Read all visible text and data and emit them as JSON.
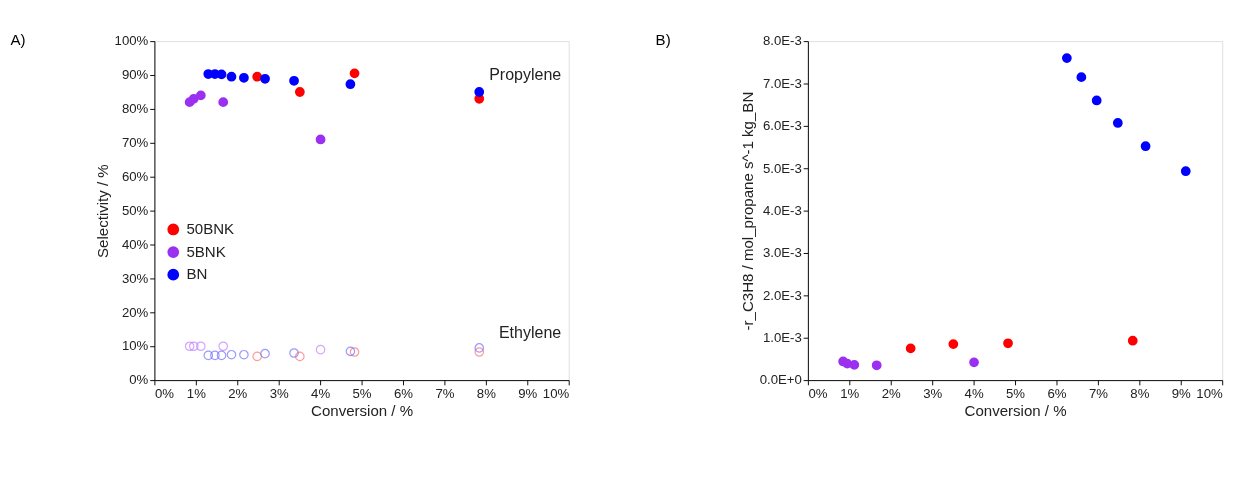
{
  "chart_data": [
    {
      "type": "scatter",
      "title": "A)",
      "xlabel": "Conversion / %",
      "ylabel": "Selectivity / %",
      "xlim": [
        0,
        10
      ],
      "xticks": [
        {
          "value": 0,
          "label": "0%"
        },
        {
          "value": 1,
          "label": "1%"
        },
        {
          "value": 2,
          "label": "2%"
        },
        {
          "value": 3,
          "label": "3%"
        },
        {
          "value": 4,
          "label": "4%"
        },
        {
          "value": 5,
          "label": "5%"
        },
        {
          "value": 6,
          "label": "6%"
        },
        {
          "value": 7,
          "label": "7%"
        },
        {
          "value": 8,
          "label": "8%"
        },
        {
          "value": 9,
          "label": "9%"
        },
        {
          "value": 10,
          "label": "10%"
        }
      ],
      "ylim": [
        0,
        100
      ],
      "yticks": [
        {
          "value": 0,
          "label": "0%"
        },
        {
          "value": 10,
          "label": "10%"
        },
        {
          "value": 20,
          "label": "20%"
        },
        {
          "value": 30,
          "label": "30%"
        },
        {
          "value": 40,
          "label": "40%"
        },
        {
          "value": 50,
          "label": "50%"
        },
        {
          "value": 60,
          "label": "60%"
        },
        {
          "value": 70,
          "label": "70%"
        },
        {
          "value": 80,
          "label": "80%"
        },
        {
          "value": 90,
          "label": "90%"
        },
        {
          "value": 100,
          "label": "100%"
        }
      ],
      "marker": "circle",
      "grid": false,
      "legend": "left",
      "annotations": [
        "Propylene",
        "Ethylene"
      ],
      "series": [
        {
          "name": "50BNK",
          "color": "#ff0000",
          "x": [
            2.48,
            3.51,
            4.83,
            7.84
          ],
          "values": [
            89.5,
            85.0,
            90.5,
            83.0
          ]
        },
        {
          "name": "5BNK",
          "color": "#9b30f0",
          "x": [
            0.85,
            0.95,
            1.12,
            1.66,
            4.01
          ],
          "values": [
            82,
            83,
            84,
            82,
            71
          ]
        },
        {
          "name": "BN",
          "color": "#0000ff",
          "x": [
            1.3,
            1.46,
            1.62,
            1.86,
            2.16,
            2.67,
            3.37,
            4.73,
            7.84
          ],
          "values": [
            90.3,
            90.3,
            90.2,
            89.5,
            89.2,
            88.9,
            88.3,
            87.3,
            85.0
          ]
        },
        {
          "color": "#ff7070",
          "x": [
            2.48,
            3.51,
            4.83,
            7.84
          ],
          "values": [
            7.0,
            7.0,
            8.3,
            8.3
          ]
        },
        {
          "color": "#c080ff",
          "x": [
            0.85,
            0.95,
            1.12,
            1.66,
            4.01
          ],
          "values": [
            10,
            10,
            10,
            10,
            9.0
          ]
        },
        {
          "color": "#7070ff",
          "x": [
            1.3,
            1.46,
            1.62,
            1.86,
            2.16,
            2.67,
            3.37,
            4.73,
            7.84
          ],
          "values": [
            7.3,
            7.3,
            7.3,
            7.5,
            7.5,
            7.8,
            8.0,
            8.5,
            9.5
          ]
        }
      ]
    },
    {
      "type": "scatter",
      "title": "B)",
      "xlabel": "Conversion / %",
      "ylabel": "-r_C3H8 / mol_propane s^-1 kg_BN",
      "xlim": [
        0,
        10
      ],
      "xticks": [
        {
          "value": 0,
          "label": "0%"
        },
        {
          "value": 1,
          "label": "1%"
        },
        {
          "value": 2,
          "label": "2%"
        },
        {
          "value": 3,
          "label": "3%"
        },
        {
          "value": 4,
          "label": "4%"
        },
        {
          "value": 5,
          "label": "5%"
        },
        {
          "value": 6,
          "label": "6%"
        },
        {
          "value": 7,
          "label": "7%"
        },
        {
          "value": 8,
          "label": "8%"
        },
        {
          "value": 9,
          "label": "9%"
        },
        {
          "value": 10,
          "label": "10%"
        }
      ],
      "ylim": [
        0,
        0.008
      ],
      "yticks": [
        {
          "value": 0,
          "label": "0.0E+0"
        },
        {
          "value": 0.001,
          "label": "1.0E-3"
        },
        {
          "value": 0.002,
          "label": "2.0E-3"
        },
        {
          "value": 0.003,
          "label": "3.0E-3"
        },
        {
          "value": 0.004,
          "label": "4.0E-3"
        },
        {
          "value": 0.005,
          "label": "5.0E-3"
        },
        {
          "value": 0.006,
          "label": "6.0E-3"
        },
        {
          "value": 0.007,
          "label": "7.0E-3"
        },
        {
          "value": 0.008,
          "label": "8.0E-3"
        }
      ],
      "marker": "circle",
      "grid": false,
      "series": [
        {
          "color": "#ff0000",
          "x": [
            2.48,
            3.51,
            4.83,
            7.84
          ],
          "values": [
            0.00075,
            0.00085,
            0.00087,
            0.00093
          ]
        },
        {
          "color": "#9b30f0",
          "x": [
            0.85,
            0.95,
            1.12,
            1.66,
            4.01
          ],
          "values": [
            0.00044,
            0.00039,
            0.00036,
            0.00035,
            0.00042
          ]
        },
        {
          "color": "#0000ff",
          "x": [
            6.25,
            6.6,
            6.97,
            7.48,
            8.15,
            9.12
          ],
          "values": [
            0.0076,
            0.00715,
            0.0066,
            0.00607,
            0.00552,
            0.00493
          ]
        }
      ]
    }
  ]
}
